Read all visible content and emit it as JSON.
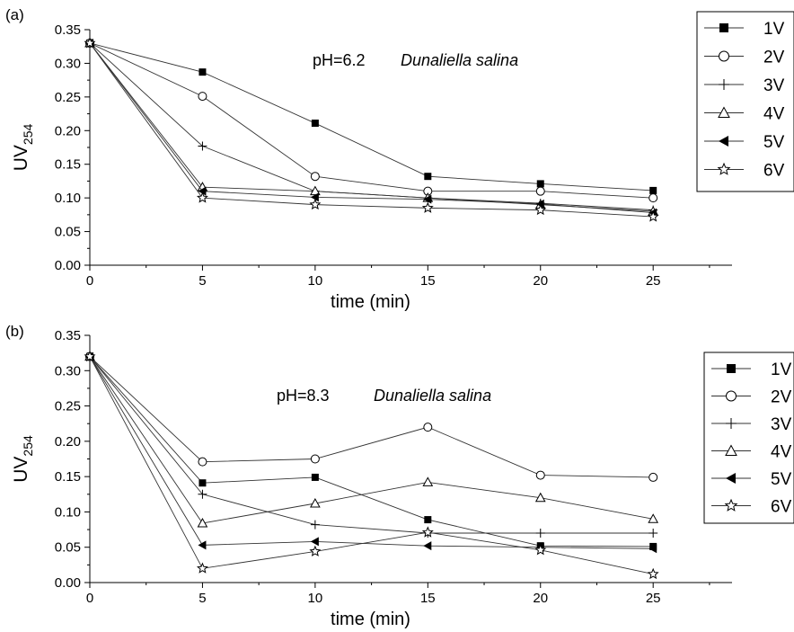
{
  "chart_data": [
    {
      "type": "line",
      "panel_label": "(a)",
      "annotation": {
        "text": "pH=6.2",
        "species": "Dunaliella salina"
      },
      "xlabel": "time (min)",
      "ylabel": "UV",
      "ylabel_sub": "254",
      "xlim": [
        0,
        28.5
      ],
      "ylim": [
        0,
        0.35
      ],
      "xticks": [
        0,
        5,
        10,
        15,
        20,
        25
      ],
      "yticks": [
        0.0,
        0.05,
        0.1,
        0.15,
        0.2,
        0.25,
        0.3,
        0.35
      ],
      "x": [
        0,
        5,
        10,
        15,
        20,
        25
      ],
      "legend_position": "top-right",
      "series": [
        {
          "name": "1V",
          "marker": "square-filled",
          "values": [
            0.33,
            0.287,
            0.211,
            0.132,
            0.121,
            0.111
          ]
        },
        {
          "name": "2V",
          "marker": "circle-open",
          "values": [
            0.33,
            0.251,
            0.132,
            0.11,
            0.11,
            0.1
          ]
        },
        {
          "name": "3V",
          "marker": "plus",
          "values": [
            0.33,
            0.177,
            0.11,
            0.1,
            0.092,
            0.082
          ]
        },
        {
          "name": "4V",
          "marker": "triangle-up-open",
          "values": [
            0.33,
            0.116,
            0.11,
            0.1,
            0.09,
            0.08
          ]
        },
        {
          "name": "5V",
          "marker": "triangle-left-filled",
          "values": [
            0.33,
            0.11,
            0.101,
            0.098,
            0.091,
            0.078
          ]
        },
        {
          "name": "6V",
          "marker": "star-open",
          "values": [
            0.33,
            0.1,
            0.09,
            0.085,
            0.082,
            0.072
          ]
        }
      ]
    },
    {
      "type": "line",
      "panel_label": "(b)",
      "annotation": {
        "text": "pH=8.3",
        "species": "Dunaliella salina"
      },
      "xlabel": "time (min)",
      "ylabel": "UV",
      "ylabel_sub": "254",
      "xlim": [
        0,
        28.5
      ],
      "ylim": [
        0,
        0.35
      ],
      "xticks": [
        0,
        5,
        10,
        15,
        20,
        25
      ],
      "yticks": [
        0.0,
        0.05,
        0.1,
        0.15,
        0.2,
        0.25,
        0.3,
        0.35
      ],
      "x": [
        0,
        5,
        10,
        15,
        20,
        25
      ],
      "legend_position": "right",
      "series": [
        {
          "name": "1V",
          "marker": "square-filled",
          "values": [
            0.32,
            0.141,
            0.149,
            0.089,
            0.052,
            0.051
          ]
        },
        {
          "name": "2V",
          "marker": "circle-open",
          "values": [
            0.32,
            0.171,
            0.175,
            0.22,
            0.152,
            0.149
          ]
        },
        {
          "name": "3V",
          "marker": "plus",
          "values": [
            0.32,
            0.125,
            0.082,
            0.07,
            0.07,
            0.07
          ]
        },
        {
          "name": "4V",
          "marker": "triangle-up-open",
          "values": [
            0.32,
            0.084,
            0.112,
            0.142,
            0.12,
            0.09
          ]
        },
        {
          "name": "5V",
          "marker": "triangle-left-filled",
          "values": [
            0.32,
            0.053,
            0.058,
            0.052,
            0.05,
            0.048
          ]
        },
        {
          "name": "6V",
          "marker": "star-open",
          "values": [
            0.32,
            0.02,
            0.044,
            0.071,
            0.046,
            0.012
          ]
        }
      ]
    }
  ]
}
